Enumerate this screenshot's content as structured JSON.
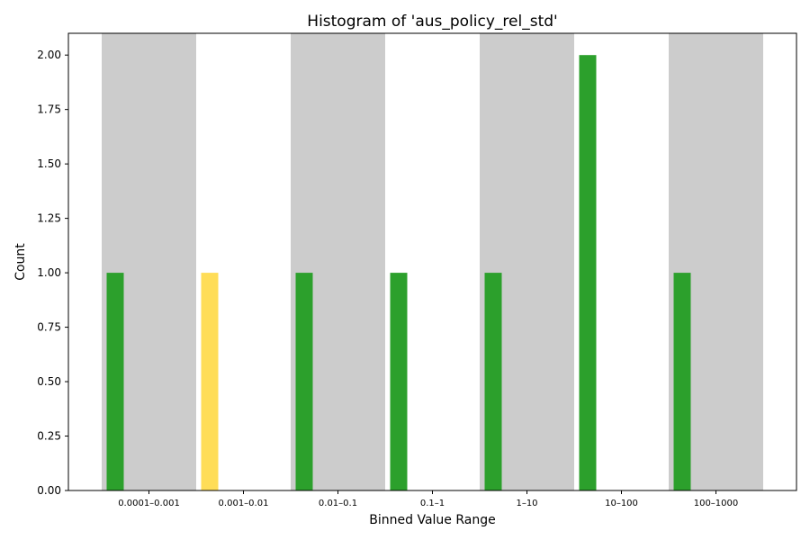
{
  "chart_data": {
    "type": "bar",
    "title": "Histogram of 'aus_policy_rel_std'",
    "xlabel": "Binned Value Range",
    "ylabel": "Count",
    "ylim": [
      0,
      2.1
    ],
    "yticks": [
      "0.00",
      "0.25",
      "0.50",
      "0.75",
      "1.00",
      "1.25",
      "1.50",
      "1.75",
      "2.00"
    ],
    "categories": [
      "0.0001–0.001",
      "0.001–0.01",
      "0.01–0.1",
      "0.1–1",
      "1–10",
      "10–100",
      "100–1000"
    ],
    "values": [
      1,
      1,
      1,
      1,
      1,
      2,
      1
    ],
    "bar_colors": [
      "#2ca02c",
      "#ffdd57",
      "#2ca02c",
      "#2ca02c",
      "#2ca02c",
      "#2ca02c",
      "#2ca02c"
    ],
    "band_shaded": [
      true,
      false,
      true,
      false,
      true,
      false,
      true
    ],
    "band_color": "#cccccc",
    "grid": false,
    "legend": "none"
  }
}
